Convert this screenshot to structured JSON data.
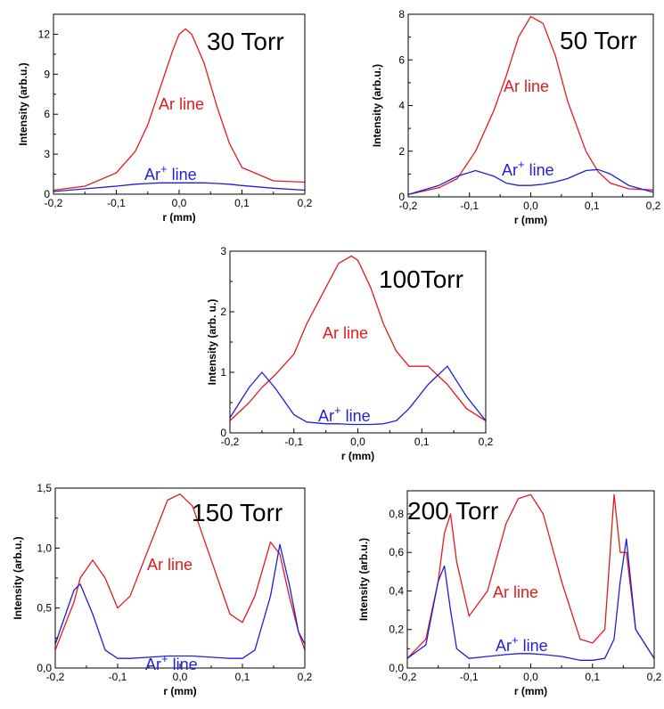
{
  "chart_data": [
    {
      "type": "line",
      "title": "30 Torr",
      "xlabel": "r (mm)",
      "ylabel": "Intensity (arb.u.)",
      "xlim": [
        -0.2,
        0.2
      ],
      "ylim": [
        0,
        13.5
      ],
      "xticks": [
        "-0,2",
        "-0,1",
        "0,0",
        "0,1",
        "0,2"
      ],
      "yticks": [
        {
          "v": 0,
          "label": "0"
        },
        {
          "v": 3,
          "label": "3"
        },
        {
          "v": 6,
          "label": "6"
        },
        {
          "v": 9,
          "label": "9"
        },
        {
          "v": 12,
          "label": "12"
        }
      ],
      "x": [
        -0.2,
        -0.15,
        -0.1,
        -0.07,
        -0.05,
        -0.03,
        -0.01,
        0.0,
        0.01,
        0.02,
        0.04,
        0.06,
        0.08,
        0.1,
        0.15,
        0.2
      ],
      "series": [
        {
          "name": "Ar line",
          "label_pre": "Ar",
          "label_sup": "",
          "label_post": " line",
          "color": "#e41a1c",
          "values": [
            0.3,
            0.6,
            1.6,
            3.2,
            5.2,
            8.0,
            10.8,
            12.0,
            12.4,
            12.0,
            9.8,
            6.6,
            3.8,
            2.0,
            1.0,
            0.9
          ]
        },
        {
          "name": "Ar+ line",
          "label_pre": "Ar",
          "label_sup": "+",
          "label_post": " line",
          "color": "#1f1fd6",
          "values": [
            0.2,
            0.4,
            0.6,
            0.75,
            0.8,
            0.85,
            0.85,
            0.85,
            0.85,
            0.85,
            0.85,
            0.8,
            0.75,
            0.65,
            0.45,
            0.3
          ]
        }
      ]
    },
    {
      "type": "line",
      "title": "50 Torr",
      "xlabel": "r (mm)",
      "ylabel": "Intensity (arb.u.)",
      "xlim": [
        -0.2,
        0.2
      ],
      "ylim": [
        0,
        8
      ],
      "xticks": [
        "-0,2",
        "-0,1",
        "0,0",
        "0,1",
        "0,2"
      ],
      "yticks": [
        {
          "v": 0,
          "label": "0"
        },
        {
          "v": 2,
          "label": "2"
        },
        {
          "v": 4,
          "label": "4"
        },
        {
          "v": 6,
          "label": "6"
        },
        {
          "v": 8,
          "label": "8"
        }
      ],
      "x": [
        -0.2,
        -0.15,
        -0.12,
        -0.09,
        -0.06,
        -0.04,
        -0.02,
        0.0,
        0.02,
        0.04,
        0.06,
        0.09,
        0.11,
        0.13,
        0.16,
        0.2
      ],
      "series": [
        {
          "name": "Ar line",
          "label_pre": "Ar",
          "label_sup": "",
          "label_post": " line",
          "color": "#e41a1c",
          "values": [
            0.1,
            0.4,
            0.8,
            2.0,
            3.8,
            5.3,
            7.0,
            7.9,
            7.6,
            6.2,
            4.2,
            2.0,
            1.1,
            0.6,
            0.35,
            0.3
          ]
        },
        {
          "name": "Ar+ line",
          "label_pre": "Ar",
          "label_sup": "+",
          "label_post": " line",
          "color": "#1f1fd6",
          "values": [
            0.1,
            0.5,
            0.9,
            1.15,
            0.9,
            0.6,
            0.5,
            0.5,
            0.55,
            0.65,
            0.8,
            1.15,
            1.2,
            1.0,
            0.5,
            0.2
          ]
        }
      ]
    },
    {
      "type": "line",
      "title": "100Torr",
      "xlabel": "r (mm)",
      "ylabel": "Intensity (arb. u.)",
      "xlim": [
        -0.2,
        0.2
      ],
      "ylim": [
        0,
        3
      ],
      "xticks": [
        "-0,2",
        "-0,1",
        "0,0",
        "0,1",
        "0,2"
      ],
      "yticks": [
        {
          "v": 0,
          "label": "0"
        },
        {
          "v": 1,
          "label": "1"
        },
        {
          "v": 2,
          "label": "2"
        },
        {
          "v": 3,
          "label": "3"
        }
      ],
      "x": [
        -0.2,
        -0.17,
        -0.15,
        -0.13,
        -0.1,
        -0.08,
        -0.05,
        -0.03,
        -0.01,
        0.0,
        0.02,
        0.04,
        0.06,
        0.08,
        0.11,
        0.14,
        0.17,
        0.2
      ],
      "series": [
        {
          "name": "Ar line",
          "label_pre": "Ar",
          "label_sup": "",
          "label_post": " line",
          "color": "#e41a1c",
          "values": [
            0.2,
            0.5,
            0.75,
            0.95,
            1.3,
            1.8,
            2.4,
            2.8,
            2.92,
            2.85,
            2.4,
            1.8,
            1.35,
            1.1,
            1.1,
            0.8,
            0.4,
            0.2
          ]
        },
        {
          "name": "Ar+ line",
          "label_pre": "Ar",
          "label_sup": "+",
          "label_post": " line",
          "color": "#1f1fd6",
          "values": [
            0.25,
            0.75,
            1.0,
            0.75,
            0.3,
            0.18,
            0.15,
            0.15,
            0.14,
            0.14,
            0.14,
            0.15,
            0.2,
            0.4,
            0.8,
            1.1,
            0.6,
            0.2
          ]
        }
      ]
    },
    {
      "type": "line",
      "title": "150 Torr",
      "xlabel": "r (mm)",
      "ylabel": "Intensity (arb.u.)",
      "xlim": [
        -0.2,
        0.2
      ],
      "ylim": [
        0,
        1.5
      ],
      "xticks": [
        "-0,2",
        "-0,1",
        "0,0",
        "0,1",
        "0,2"
      ],
      "yticks": [
        {
          "v": 0,
          "label": "0,0"
        },
        {
          "v": 0.5,
          "label": "0,5"
        },
        {
          "v": 1.0,
          "label": "1,0"
        },
        {
          "v": 1.5,
          "label": "1,5"
        }
      ],
      "x": [
        -0.2,
        -0.17,
        -0.16,
        -0.14,
        -0.12,
        -0.1,
        -0.08,
        -0.05,
        -0.02,
        0.0,
        0.02,
        0.05,
        0.08,
        0.1,
        0.12,
        0.145,
        0.16,
        0.175,
        0.19,
        0.2
      ],
      "series": [
        {
          "name": "Ar line",
          "label_pre": "Ar",
          "label_sup": "",
          "label_post": " line",
          "color": "#e41a1c",
          "values": [
            0.15,
            0.55,
            0.75,
            0.9,
            0.75,
            0.5,
            0.6,
            1.0,
            1.4,
            1.45,
            1.35,
            0.9,
            0.45,
            0.38,
            0.6,
            1.05,
            0.95,
            0.6,
            0.3,
            0.15
          ]
        },
        {
          "name": "Ar+ line",
          "label_pre": "Ar",
          "label_sup": "+",
          "label_post": " line",
          "color": "#1f1fd6",
          "values": [
            0.2,
            0.65,
            0.7,
            0.45,
            0.15,
            0.08,
            0.08,
            0.09,
            0.1,
            0.1,
            0.1,
            0.09,
            0.08,
            0.08,
            0.15,
            0.6,
            1.03,
            0.7,
            0.3,
            0.2
          ]
        }
      ]
    },
    {
      "type": "line",
      "title": "200 Torr",
      "xlabel": "r (mm)",
      "ylabel": "Intensity (arb.u.)",
      "xlim": [
        -0.2,
        0.2
      ],
      "ylim": [
        0,
        0.92
      ],
      "xticks": [
        "-0,2",
        "-0,1",
        "0,0",
        "0,1",
        "0,2"
      ],
      "yticks": [
        {
          "v": 0,
          "label": "0,0"
        },
        {
          "v": 0.2,
          "label": "0,2"
        },
        {
          "v": 0.4,
          "label": "0,4"
        },
        {
          "v": 0.6,
          "label": "0,6"
        },
        {
          "v": 0.8,
          "label": "0,8"
        }
      ],
      "x": [
        -0.2,
        -0.17,
        -0.15,
        -0.14,
        -0.13,
        -0.12,
        -0.1,
        -0.07,
        -0.04,
        -0.02,
        0.0,
        0.02,
        0.05,
        0.08,
        0.1,
        0.12,
        0.135,
        0.145,
        0.155,
        0.17,
        0.2
      ],
      "series": [
        {
          "name": "Ar line",
          "label_pre": "Ar",
          "label_sup": "",
          "label_post": " line",
          "color": "#e41a1c",
          "values": [
            0.05,
            0.15,
            0.45,
            0.7,
            0.8,
            0.55,
            0.27,
            0.4,
            0.75,
            0.88,
            0.9,
            0.8,
            0.45,
            0.15,
            0.13,
            0.2,
            0.9,
            0.6,
            0.6,
            0.2,
            0.05
          ]
        },
        {
          "name": "Ar+ line",
          "label_pre": "Ar",
          "label_sup": "+",
          "label_post": " line",
          "color": "#1f1fd6",
          "values": [
            0.05,
            0.12,
            0.45,
            0.53,
            0.3,
            0.1,
            0.05,
            0.06,
            0.07,
            0.075,
            0.075,
            0.07,
            0.06,
            0.04,
            0.04,
            0.05,
            0.15,
            0.45,
            0.67,
            0.2,
            0.05
          ]
        }
      ]
    }
  ]
}
